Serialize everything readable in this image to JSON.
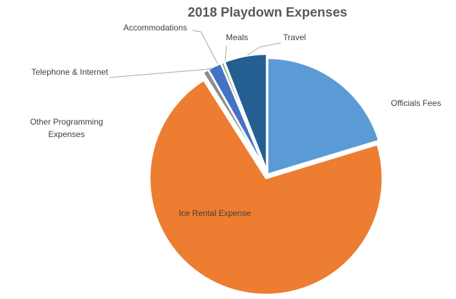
{
  "chart_data": {
    "type": "pie",
    "title": "2018 Playdown Expenses",
    "series": [
      {
        "name": "Officials Fees",
        "value": 20.3,
        "color": "#5b9bd5",
        "label_lines": [
          "Officials Fees"
        ],
        "exploded": false
      },
      {
        "name": "Ice Rental Expense",
        "value": 70.7,
        "color": "#ed7d31",
        "label_lines": [
          "Ice Rental Expense"
        ],
        "exploded": true
      },
      {
        "name": "Other Programming Expenses",
        "value": 0.0,
        "color": "#a5a5a5",
        "label_lines": [
          "Other Programming",
          "Expenses"
        ],
        "exploded": true
      },
      {
        "name": "Telephone & Internet",
        "value": 0.8,
        "color": "#8c8c8c",
        "label_lines": [
          "Telephone & Internet"
        ],
        "exploded": true
      },
      {
        "name": "Accommodations",
        "value": 1.9,
        "color": "#4472c4",
        "label_lines": [
          "Accommodations"
        ],
        "exploded": true
      },
      {
        "name": "Meals",
        "value": 0.4,
        "color": "#70ad47",
        "label_lines": [
          "Meals"
        ],
        "exploded": true
      },
      {
        "name": "Travel",
        "value": 5.9,
        "color": "#255e91",
        "label_lines": [
          "Travel"
        ],
        "exploded": true
      }
    ],
    "legend": "none",
    "data_labels": "category names"
  }
}
